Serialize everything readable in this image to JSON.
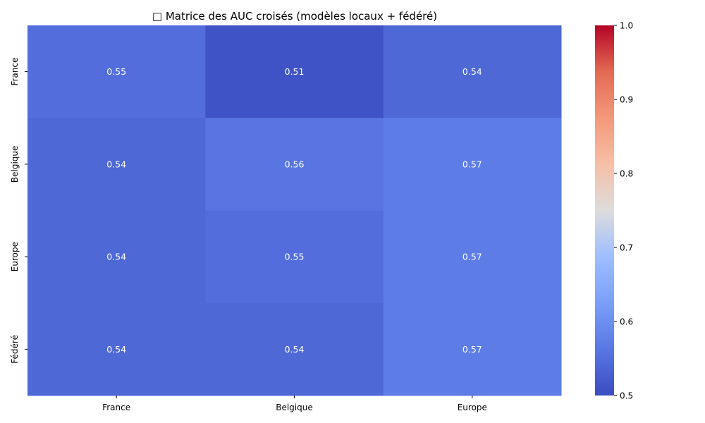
{
  "chart_data": {
    "type": "heatmap",
    "title": "□ Matrice des AUC croisés (modèles locaux + fédéré)",
    "rows": [
      "France",
      "Belgique",
      "Europe",
      "Fédéré"
    ],
    "columns": [
      "France",
      "Belgique",
      "Europe"
    ],
    "values": [
      [
        0.55,
        0.51,
        0.54
      ],
      [
        0.54,
        0.56,
        0.57
      ],
      [
        0.54,
        0.55,
        0.57
      ],
      [
        0.54,
        0.54,
        0.57
      ]
    ],
    "colormap": "coolwarm",
    "vmin": 0.5,
    "vmax": 1.0,
    "colorbar_ticks": [
      "0.5",
      "0.6",
      "0.7",
      "0.8",
      "0.9",
      "1.0"
    ]
  }
}
